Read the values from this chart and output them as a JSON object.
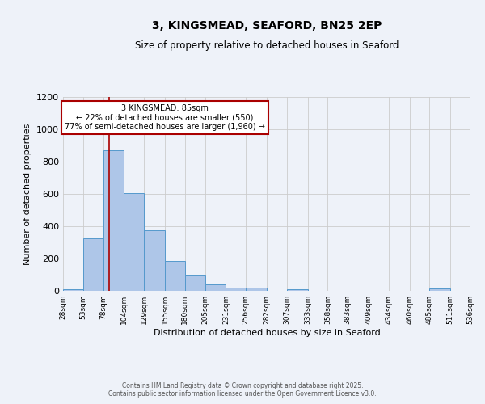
{
  "title": "3, KINGSMEAD, SEAFORD, BN25 2EP",
  "subtitle": "Size of property relative to detached houses in Seaford",
  "xlabel": "Distribution of detached houses by size in Seaford",
  "ylabel": "Number of detached properties",
  "bin_edges": [
    28,
    53,
    78,
    104,
    129,
    155,
    180,
    205,
    231,
    256,
    282,
    307,
    333,
    358,
    383,
    409,
    434,
    460,
    485,
    511,
    536
  ],
  "bin_heights": [
    10,
    325,
    870,
    605,
    375,
    185,
    100,
    42,
    18,
    20,
    0,
    10,
    0,
    0,
    0,
    0,
    0,
    0,
    15,
    0
  ],
  "bar_color": "#aec6e8",
  "bar_edge_color": "#5599cc",
  "bg_color": "#eef2f9",
  "grid_color": "#cccccc",
  "vline_x": 85,
  "vline_color": "#aa0000",
  "annotation_title": "3 KINGSMEAD: 85sqm",
  "annotation_line1": "← 22% of detached houses are smaller (550)",
  "annotation_line2": "77% of semi-detached houses are larger (1,960) →",
  "annotation_box_edge": "#aa0000",
  "ylim": [
    0,
    1200
  ],
  "yticks": [
    0,
    200,
    400,
    600,
    800,
    1000,
    1200
  ],
  "footnote1": "Contains HM Land Registry data © Crown copyright and database right 2025.",
  "footnote2": "Contains public sector information licensed under the Open Government Licence v3.0."
}
